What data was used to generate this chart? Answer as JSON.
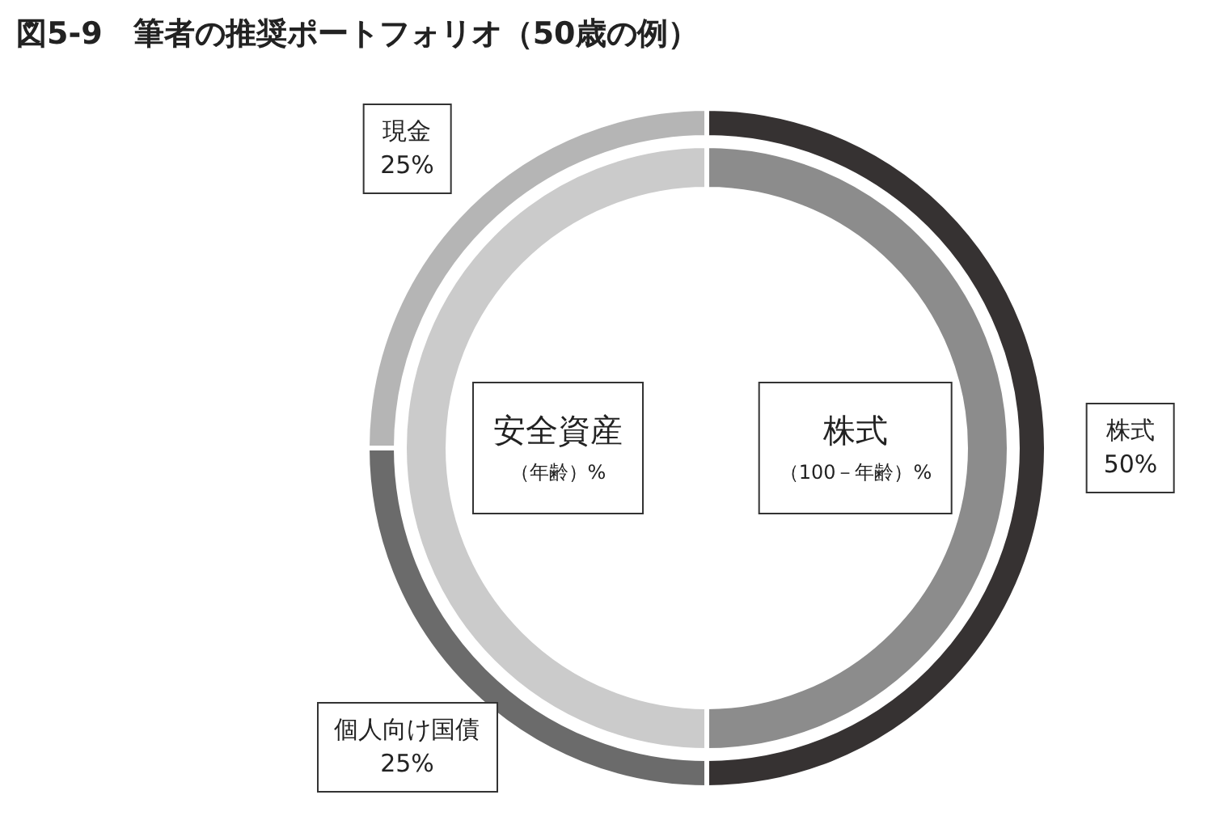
{
  "chart_data": [
    {
      "type": "donut",
      "title": "図5-9　筆者の推奨ポートフォリオ（50歳の例）",
      "categories": [
        "株式",
        "個人向け国債",
        "現金"
      ],
      "values": [
        50,
        25,
        25
      ],
      "colors": [
        "#363232",
        "#6b6b6b",
        "#b5b5b5"
      ],
      "value_labels": [
        "50%",
        "25%",
        "25%"
      ]
    },
    {
      "type": "donut",
      "categories": [
        "株式",
        "安全資産"
      ],
      "values": [
        50,
        50
      ],
      "colors": [
        "#8c8c8c",
        "#cbcbcb"
      ],
      "annotations": [
        "（100－年齢）%",
        "（年齢）%"
      ]
    }
  ]
}
